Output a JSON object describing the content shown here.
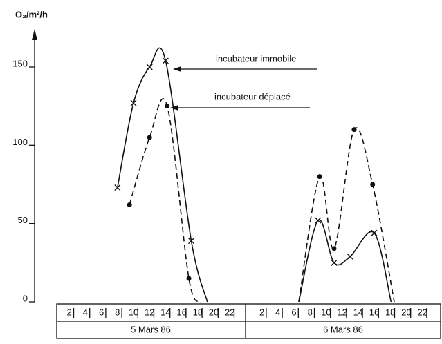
{
  "chart_data": {
    "type": "line",
    "ylabel": "O₂/m²/h",
    "x": [
      8,
      10,
      12,
      14,
      17.2,
      19.2,
      null,
      30.6,
      33,
      35,
      37,
      40,
      42.1
    ],
    "series": [
      {
        "name": "incubateur immobile",
        "color": "#111111",
        "marker": "x",
        "dashed": false,
        "x": [
          8,
          10,
          12,
          14,
          17.2,
          19.2,
          null,
          30.6,
          33,
          35,
          37,
          40,
          42.1
        ],
        "values": [
          73,
          127,
          150,
          154,
          39,
          0,
          null,
          0,
          52,
          25,
          29,
          44,
          0
        ]
      },
      {
        "name": "incubateur déplacé",
        "color": "#111111",
        "marker": "o",
        "dashed": true,
        "x": [
          9.5,
          12,
          14.2,
          16.9,
          18.4,
          null,
          30.6,
          33.2,
          35,
          37.5,
          39.8,
          42.5
        ],
        "values": [
          62,
          105,
          125,
          15,
          0,
          null,
          0,
          80,
          34,
          110,
          75,
          0
        ]
      }
    ],
    "xlim": [
      0,
      48
    ],
    "xticks": [
      2,
      4,
      6,
      8,
      10,
      12,
      14,
      16,
      18,
      20,
      22,
      {
        "value": 26,
        "label": "2"
      },
      {
        "value": 28,
        "label": "4"
      },
      {
        "value": 30,
        "label": "6"
      },
      {
        "value": 32,
        "label": "8"
      },
      {
        "value": 34,
        "label": "10"
      },
      {
        "value": 36,
        "label": "12"
      },
      {
        "value": 38,
        "label": "14"
      },
      {
        "value": 40,
        "label": "16"
      },
      {
        "value": 42,
        "label": "18"
      },
      {
        "value": 44,
        "label": "20"
      },
      {
        "value": 46,
        "label": "22"
      }
    ],
    "days": [
      "5 Mars 86",
      "6 Mars 86"
    ],
    "ylim": [
      0,
      165
    ],
    "yticks": [
      0,
      50,
      100,
      150
    ]
  }
}
